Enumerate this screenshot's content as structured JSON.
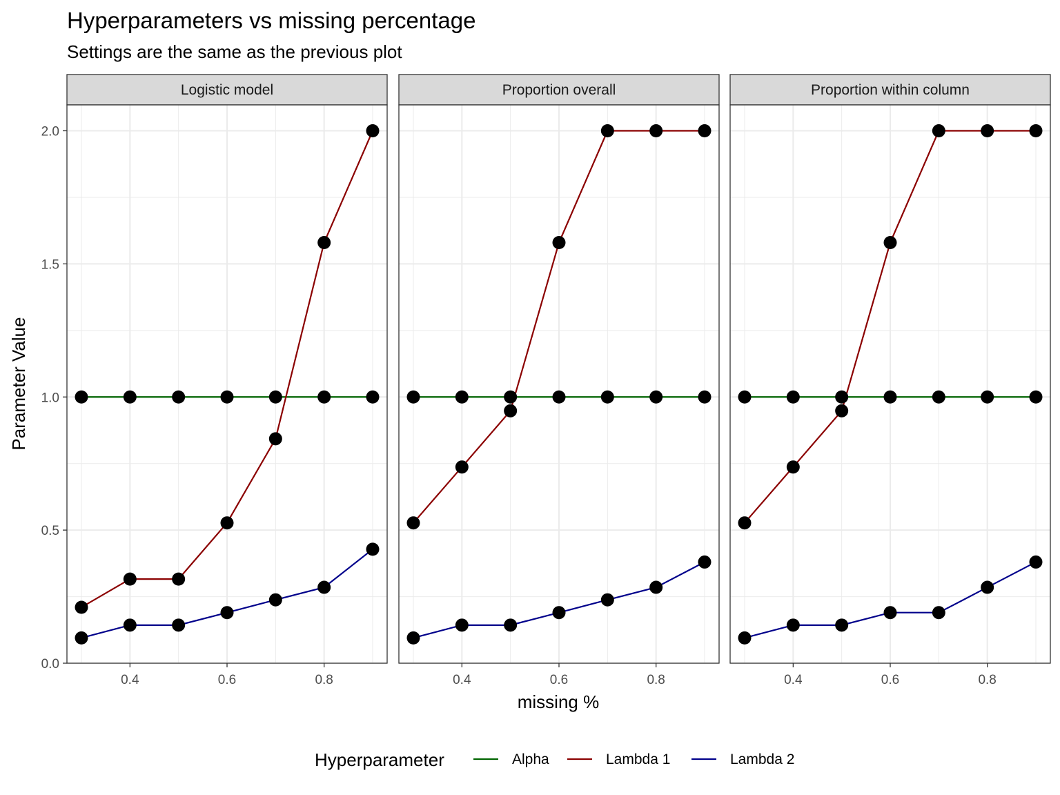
{
  "title": "Hyperparameters vs missing percentage",
  "subtitle": "Settings are the same as the previous plot",
  "colors": {
    "alpha": "#006400",
    "lambda1": "#8B0000",
    "lambda2": "#00008B",
    "point": "#000000",
    "strip_bg": "#D9D9D9",
    "grid": "#EBEBEB"
  },
  "legend": {
    "title": "Hyperparameter",
    "position": "bottom",
    "items": [
      "Alpha",
      "Lambda 1",
      "Lambda 2"
    ]
  },
  "chart_data": {
    "type": "line",
    "title": "Hyperparameters vs missing percentage",
    "subtitle": "Settings are the same as the previous plot",
    "xlabel": "missing %",
    "ylabel": "Parameter Value",
    "xlim": [
      0.3,
      0.9
    ],
    "ylim": [
      0,
      2
    ],
    "x_ticks": [
      "0.4",
      "0.6",
      "0.8"
    ],
    "y_ticks": [
      "0.0",
      "0.5",
      "1.0",
      "1.5",
      "2.0"
    ],
    "grid": true,
    "markers": true,
    "x": [
      0.3,
      0.4,
      0.5,
      0.6,
      0.7,
      0.8,
      0.9
    ],
    "facets": [
      {
        "label": "Logistic model",
        "series": [
          {
            "name": "Alpha",
            "values": [
              1,
              1,
              1,
              1,
              1,
              1,
              1
            ]
          },
          {
            "name": "Lambda 1",
            "values": [
              0.21,
              0.316,
              0.316,
              0.527,
              0.843,
              1.58,
              2.0
            ]
          },
          {
            "name": "Lambda 2",
            "values": [
              0.095,
              0.143,
              0.143,
              0.19,
              0.238,
              0.285,
              0.428
            ]
          }
        ]
      },
      {
        "label": "Proportion overall",
        "series": [
          {
            "name": "Alpha",
            "values": [
              1,
              1,
              1,
              1,
              1,
              1,
              1
            ]
          },
          {
            "name": "Lambda 1",
            "values": [
              0.527,
              0.737,
              0.948,
              1.58,
              2.0,
              2.0,
              2.0
            ]
          },
          {
            "name": "Lambda 2",
            "values": [
              0.095,
              0.143,
              0.143,
              0.19,
              0.238,
              0.285,
              0.38
            ]
          }
        ]
      },
      {
        "label": "Proportion within column",
        "series": [
          {
            "name": "Alpha",
            "values": [
              1,
              1,
              1,
              1,
              1,
              1,
              1
            ]
          },
          {
            "name": "Lambda 1",
            "values": [
              0.527,
              0.737,
              0.948,
              1.58,
              2.0,
              2.0,
              2.0
            ]
          },
          {
            "name": "Lambda 2",
            "values": [
              0.095,
              0.143,
              0.143,
              0.19,
              0.19,
              0.285,
              0.38
            ]
          }
        ]
      }
    ]
  }
}
